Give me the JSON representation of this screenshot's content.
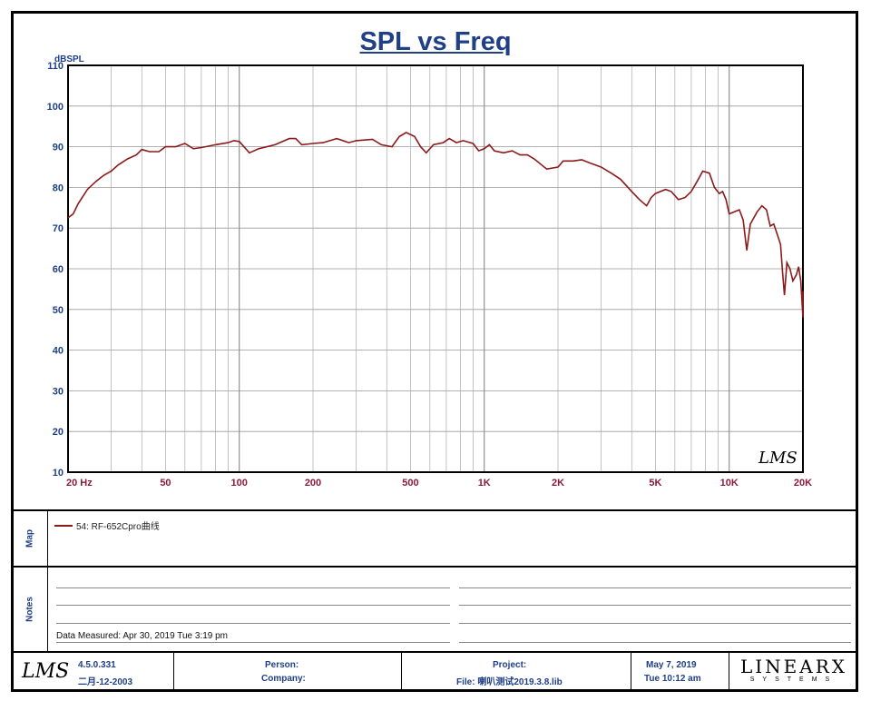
{
  "chart_data": {
    "type": "line",
    "title": "SPL vs Freq",
    "ylabel": "dBSPL",
    "xscale": "log",
    "xlim": [
      20,
      20000
    ],
    "ylim": [
      10,
      110
    ],
    "yticks": [
      "10",
      "20",
      "30",
      "40",
      "50",
      "60",
      "70",
      "80",
      "90",
      "100",
      "110"
    ],
    "xtick_labels": [
      {
        "f": 20,
        "label": "20  Hz"
      },
      {
        "f": 50,
        "label": "50"
      },
      {
        "f": 100,
        "label": "100"
      },
      {
        "f": 200,
        "label": "200"
      },
      {
        "f": 500,
        "label": "500"
      },
      {
        "f": 1000,
        "label": "1K"
      },
      {
        "f": 2000,
        "label": "2K"
      },
      {
        "f": 5000,
        "label": "5K"
      },
      {
        "f": 10000,
        "label": "10K"
      },
      {
        "f": 20000,
        "label": "20K"
      }
    ],
    "grid": true,
    "series": [
      {
        "name": "54: RF-652Cpro曲线",
        "color": "#8b1a1a",
        "points": [
          [
            20,
            72.5
          ],
          [
            21,
            73.5
          ],
          [
            22,
            76
          ],
          [
            24,
            79.5
          ],
          [
            26,
            81.5
          ],
          [
            28,
            83
          ],
          [
            30,
            84
          ],
          [
            32,
            85.5
          ],
          [
            35,
            87
          ],
          [
            38,
            88
          ],
          [
            40,
            89.3
          ],
          [
            43,
            88.8
          ],
          [
            47,
            88.8
          ],
          [
            50,
            90
          ],
          [
            55,
            90
          ],
          [
            60,
            90.8
          ],
          [
            65,
            89.5
          ],
          [
            70,
            89.8
          ],
          [
            80,
            90.5
          ],
          [
            90,
            91
          ],
          [
            95,
            91.5
          ],
          [
            100,
            91.3
          ],
          [
            110,
            88.5
          ],
          [
            120,
            89.5
          ],
          [
            140,
            90.5
          ],
          [
            160,
            92
          ],
          [
            170,
            92
          ],
          [
            180,
            90.5
          ],
          [
            200,
            90.8
          ],
          [
            220,
            91
          ],
          [
            250,
            92
          ],
          [
            280,
            91
          ],
          [
            300,
            91.5
          ],
          [
            350,
            91.8
          ],
          [
            380,
            90.5
          ],
          [
            420,
            90
          ],
          [
            450,
            92.5
          ],
          [
            480,
            93.5
          ],
          [
            520,
            92.5
          ],
          [
            550,
            90
          ],
          [
            580,
            88.5
          ],
          [
            620,
            90.5
          ],
          [
            680,
            91
          ],
          [
            720,
            92
          ],
          [
            770,
            91
          ],
          [
            820,
            91.5
          ],
          [
            900,
            90.8
          ],
          [
            950,
            89
          ],
          [
            1000,
            89.5
          ],
          [
            1050,
            90.5
          ],
          [
            1100,
            89
          ],
          [
            1200,
            88.5
          ],
          [
            1300,
            89
          ],
          [
            1400,
            88
          ],
          [
            1500,
            88
          ],
          [
            1600,
            87
          ],
          [
            1800,
            84.5
          ],
          [
            2000,
            85
          ],
          [
            2100,
            86.5
          ],
          [
            2300,
            86.5
          ],
          [
            2500,
            86.8
          ],
          [
            2700,
            86
          ],
          [
            3000,
            85
          ],
          [
            3300,
            83.5
          ],
          [
            3600,
            82
          ],
          [
            4000,
            79
          ],
          [
            4300,
            77
          ],
          [
            4600,
            75.5
          ],
          [
            4800,
            77.5
          ],
          [
            5000,
            78.5
          ],
          [
            5500,
            79.5
          ],
          [
            5800,
            79
          ],
          [
            6200,
            77
          ],
          [
            6600,
            77.5
          ],
          [
            7000,
            79
          ],
          [
            7400,
            81.5
          ],
          [
            7800,
            84
          ],
          [
            8300,
            83.5
          ],
          [
            8700,
            80
          ],
          [
            9100,
            78.5
          ],
          [
            9400,
            79
          ],
          [
            9700,
            77
          ],
          [
            10000,
            73.5
          ],
          [
            10500,
            74
          ],
          [
            11000,
            74.5
          ],
          [
            11400,
            72
          ],
          [
            11800,
            64.5
          ],
          [
            12200,
            71
          ],
          [
            13000,
            74
          ],
          [
            13600,
            75.5
          ],
          [
            14200,
            74.5
          ],
          [
            14700,
            70.5
          ],
          [
            15200,
            71
          ],
          [
            15800,
            68
          ],
          [
            16200,
            66
          ],
          [
            16500,
            59.5
          ],
          [
            16800,
            53.5
          ],
          [
            17200,
            61.5
          ],
          [
            17700,
            60
          ],
          [
            18200,
            57
          ],
          [
            18800,
            58.5
          ],
          [
            19200,
            60.5
          ],
          [
            19600,
            57
          ],
          [
            20000,
            48
          ],
          [
            20500,
            51
          ],
          [
            21000,
            52
          ],
          [
            21500,
            54.5
          ]
        ]
      }
    ]
  },
  "watermark": "LMS",
  "map": {
    "label": "Map",
    "legend": "54: RF-652Cpro曲线"
  },
  "notes": {
    "label": "Notes",
    "measured": "Data Measured: Apr 30, 2019   Tue  3:19 pm"
  },
  "footer": {
    "logo": "LMS",
    "version": "4.5.0.331",
    "version_date": "二月-12-2003",
    "person_label": "Person:",
    "company_label": "Company:",
    "project_label": "Project:",
    "file_label": "File: 喇叭测试2019.3.8.lib",
    "date": "May  7, 2019",
    "time": "Tue 10:12 am",
    "brand_main": "LINEARX",
    "brand_sub": "SYSTEMS"
  }
}
